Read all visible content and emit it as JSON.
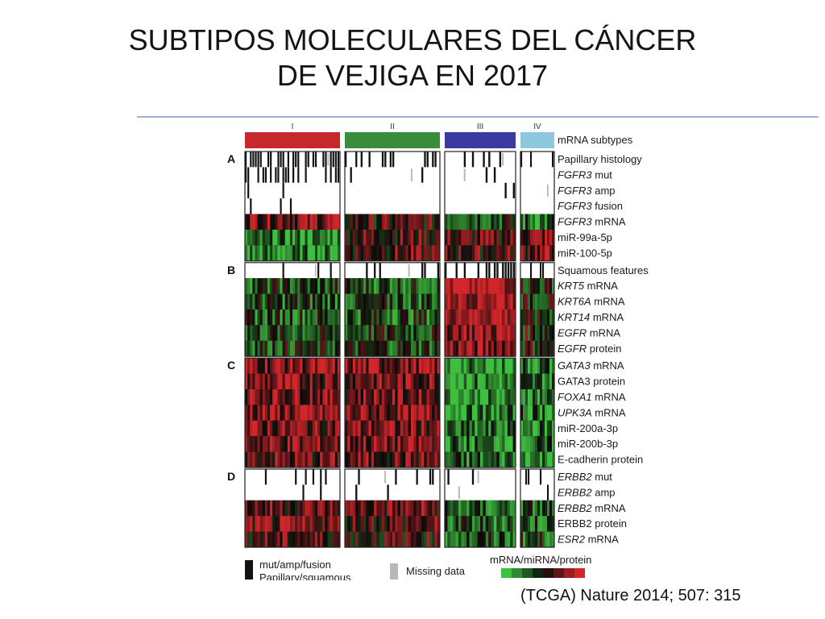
{
  "slide": {
    "title_line1": "SUBTIPOS MOLECULARES DEL CÁNCER",
    "title_line2": "DE VEJIGA EN 2017",
    "citation": "(TCGA) Nature 2014; 507: 315"
  },
  "chart_data": {
    "type": "heatmap",
    "title": "",
    "columns": [
      {
        "name": "I",
        "samples": 38,
        "color": "#c8282b"
      },
      {
        "name": "II",
        "samples": 36,
        "color": "#3a8b3a"
      },
      {
        "name": "III",
        "samples": 26,
        "color": "#3a3aa0"
      },
      {
        "name": "IV",
        "samples": 14,
        "color": "#8ec8de"
      }
    ],
    "header_row": "mRNA subtypes",
    "sections": [
      {
        "name": "A",
        "rows": [
          {
            "label": "Papillary histology",
            "kind": "binary",
            "freq": [
              0.55,
              0.3,
              0.28,
              0.15
            ]
          },
          {
            "label": "FGFR3 mut",
            "italic": "FGFR3",
            "kind": "binary",
            "freq": [
              0.3,
              0.1,
              0.05,
              0.05
            ]
          },
          {
            "label": "FGFR3 amp",
            "italic": "FGFR3",
            "kind": "binary",
            "freq": [
              0.03,
              0.02,
              0.03,
              0.0
            ]
          },
          {
            "label": "FGFR3 fusion",
            "italic": "FGFR3",
            "kind": "binary",
            "freq": [
              0.06,
              0.0,
              0.0,
              0.0
            ]
          },
          {
            "label": "FGFR3 mRNA",
            "italic": "FGFR3",
            "kind": "expr",
            "bias": [
              0.6,
              0.2,
              -0.2,
              -0.5
            ]
          },
          {
            "label": "miR-99a-5p",
            "kind": "expr",
            "bias": [
              -0.7,
              0.3,
              0.3,
              0.5
            ]
          },
          {
            "label": "miR-100-5p",
            "kind": "expr",
            "bias": [
              -0.7,
              0.3,
              0.3,
              0.5
            ]
          }
        ]
      },
      {
        "name": "B",
        "rows": [
          {
            "label": "Squamous features",
            "kind": "binary",
            "freq": [
              0.03,
              0.05,
              0.55,
              0.15
            ]
          },
          {
            "label": "KRT5 mRNA",
            "italic": "KRT5",
            "kind": "expr",
            "bias": [
              -0.3,
              -0.3,
              0.9,
              -0.1
            ]
          },
          {
            "label": "KRT6A mRNA",
            "italic": "KRT6A",
            "kind": "expr",
            "bias": [
              -0.3,
              -0.3,
              0.9,
              -0.1
            ]
          },
          {
            "label": "KRT14 mRNA",
            "italic": "KRT14",
            "kind": "expr",
            "bias": [
              -0.3,
              -0.3,
              0.9,
              -0.1
            ]
          },
          {
            "label": "EGFR mRNA",
            "italic": "EGFR",
            "kind": "expr",
            "bias": [
              -0.3,
              -0.2,
              0.7,
              0.0
            ]
          },
          {
            "label": "EGFR protein",
            "italic": "EGFR",
            "kind": "expr",
            "bias": [
              -0.2,
              -0.2,
              0.6,
              0.0
            ]
          }
        ]
      },
      {
        "name": "C",
        "rows": [
          {
            "label": "GATA3 mRNA",
            "italic": "GATA3",
            "kind": "expr",
            "bias": [
              0.6,
              0.6,
              -0.8,
              -0.5
            ]
          },
          {
            "label": "GATA3 protein",
            "kind": "expr",
            "bias": [
              0.5,
              0.5,
              -0.7,
              -0.5
            ]
          },
          {
            "label": "FOXA1 mRNA",
            "italic": "FOXA1",
            "kind": "expr",
            "bias": [
              0.6,
              0.5,
              -0.8,
              -0.5
            ]
          },
          {
            "label": "UPK3A mRNA",
            "italic": "UPK3A",
            "kind": "expr",
            "bias": [
              0.6,
              0.5,
              -0.7,
              -0.5
            ]
          },
          {
            "label": "miR-200a-3p",
            "kind": "expr",
            "bias": [
              0.5,
              0.5,
              -0.6,
              -0.6
            ]
          },
          {
            "label": "miR-200b-3p",
            "kind": "expr",
            "bias": [
              0.5,
              0.5,
              -0.6,
              -0.6
            ]
          },
          {
            "label": "E-cadherin protein",
            "kind": "expr",
            "bias": [
              0.4,
              0.4,
              -0.5,
              -0.6
            ]
          }
        ]
      },
      {
        "name": "D",
        "rows": [
          {
            "label": "ERBB2 mut",
            "italic": "ERBB2",
            "kind": "binary",
            "freq": [
              0.15,
              0.15,
              0.06,
              0.15
            ]
          },
          {
            "label": "ERBB2 amp",
            "italic": "ERBB2",
            "kind": "binary",
            "freq": [
              0.05,
              0.06,
              0.03,
              0.05
            ]
          },
          {
            "label": "ERBB2 mRNA",
            "italic": "ERBB2",
            "kind": "expr",
            "bias": [
              0.4,
              0.4,
              -0.5,
              -0.4
            ]
          },
          {
            "label": "ERBB2 protein",
            "kind": "expr",
            "bias": [
              0.4,
              0.3,
              -0.4,
              -0.4
            ]
          },
          {
            "label": "ESR2 mRNA",
            "italic": "ESR2",
            "kind": "expr",
            "bias": [
              0.3,
              0.2,
              -0.4,
              -0.3
            ]
          }
        ]
      }
    ],
    "legend": {
      "binary_label_1": "mut/amp/fusion",
      "binary_label_2": "Papillary/squamous",
      "missing_label": "Missing data",
      "scale_title": "mRNA/miRNA/protein",
      "scale_ticks": [
        "-2",
        "0",
        "2"
      ],
      "colors": {
        "low": "#3fbf3f",
        "mid": "#0a0a0a",
        "high": "#d3262b",
        "binary": "#111111",
        "missing": "#b8b8b8"
      }
    }
  }
}
